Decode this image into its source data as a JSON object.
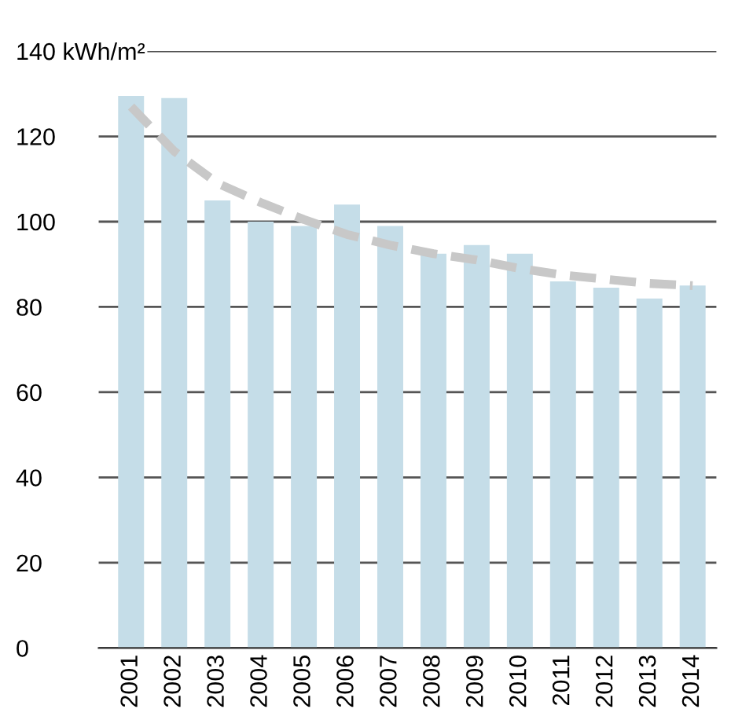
{
  "chart_data": {
    "type": "bar",
    "categories": [
      "2001",
      "2002",
      "2003",
      "2004",
      "2005",
      "2006",
      "2007",
      "2008",
      "2009",
      "2010",
      "2011",
      "2012",
      "2013",
      "2014"
    ],
    "series": [
      {
        "color": "#c5dde8",
        "values": [
          129.5,
          129,
          105,
          100,
          99,
          104,
          99,
          92.5,
          94.5,
          92.5,
          86,
          84.5,
          82,
          85
        ]
      },
      {
        "type": "line",
        "color": "#c8c8c8",
        "line_style": "dashed",
        "values": [
          127,
          116.5,
          109,
          104.5,
          100.5,
          97,
          94.5,
          92.5,
          91,
          89,
          87.5,
          86.5,
          85.5,
          85
        ]
      }
    ],
    "ylim": [
      0,
      140
    ],
    "yticks": [
      0,
      20,
      40,
      60,
      80,
      100,
      120,
      {
        "value": 140,
        "label": "140 kWh/m²"
      }
    ],
    "grid": "y"
  }
}
